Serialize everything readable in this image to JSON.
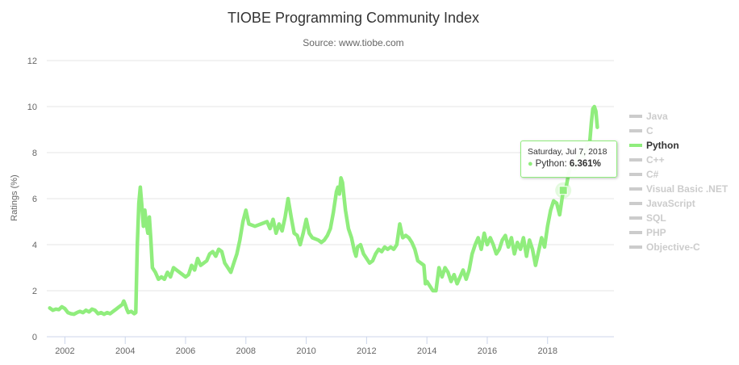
{
  "chart_data": {
    "type": "line",
    "title": "TIOBE Programming Community Index",
    "subtitle": "Source: www.tiobe.com",
    "ylabel": "Ratings (%)",
    "xlabel": "",
    "ylim": [
      0,
      12
    ],
    "xlim": [
      2001.4,
      2020.2
    ],
    "yticks": [
      0,
      2,
      4,
      6,
      8,
      10,
      12
    ],
    "xticks": [
      2002,
      2004,
      2006,
      2008,
      2010,
      2012,
      2014,
      2016,
      2018
    ],
    "grid": true,
    "legend_position": "right",
    "colors": {
      "active_series": "#90ed7d",
      "inactive_legend": "#cccccc",
      "grid": "#e6e6e6"
    },
    "legend": [
      "Java",
      "C",
      "Python",
      "C++",
      "C#",
      "Visual Basic .NET",
      "JavaScript",
      "SQL",
      "PHP",
      "Objective-C"
    ],
    "active_series": "Python",
    "series": [
      {
        "name": "Python",
        "color": "#90ed7d",
        "points": [
          [
            2001.5,
            1.25
          ],
          [
            2001.6,
            1.15
          ],
          [
            2001.7,
            1.2
          ],
          [
            2001.8,
            1.18
          ],
          [
            2001.9,
            1.3
          ],
          [
            2002.0,
            1.22
          ],
          [
            2002.1,
            1.05
          ],
          [
            2002.2,
            1.0
          ],
          [
            2002.3,
            0.98
          ],
          [
            2002.4,
            1.05
          ],
          [
            2002.5,
            1.1
          ],
          [
            2002.6,
            1.05
          ],
          [
            2002.7,
            1.15
          ],
          [
            2002.8,
            1.08
          ],
          [
            2002.9,
            1.2
          ],
          [
            2003.0,
            1.15
          ],
          [
            2003.1,
            1.0
          ],
          [
            2003.2,
            1.05
          ],
          [
            2003.3,
            0.98
          ],
          [
            2003.4,
            1.05
          ],
          [
            2003.5,
            1.0
          ],
          [
            2003.6,
            1.1
          ],
          [
            2003.7,
            1.2
          ],
          [
            2003.8,
            1.3
          ],
          [
            2003.9,
            1.4
          ],
          [
            2003.95,
            1.55
          ],
          [
            2004.0,
            1.4
          ],
          [
            2004.05,
            1.2
          ],
          [
            2004.1,
            1.05
          ],
          [
            2004.2,
            1.1
          ],
          [
            2004.3,
            1.0
          ],
          [
            2004.35,
            1.05
          ],
          [
            2004.4,
            4.0
          ],
          [
            2004.45,
            5.8
          ],
          [
            2004.5,
            6.5
          ],
          [
            2004.55,
            5.7
          ],
          [
            2004.6,
            4.8
          ],
          [
            2004.65,
            5.5
          ],
          [
            2004.7,
            4.9
          ],
          [
            2004.75,
            4.5
          ],
          [
            2004.8,
            5.2
          ],
          [
            2004.85,
            4.2
          ],
          [
            2004.9,
            3.0
          ],
          [
            2005.0,
            2.8
          ],
          [
            2005.1,
            2.5
          ],
          [
            2005.2,
            2.6
          ],
          [
            2005.3,
            2.5
          ],
          [
            2005.4,
            2.8
          ],
          [
            2005.5,
            2.6
          ],
          [
            2005.6,
            3.0
          ],
          [
            2005.7,
            2.9
          ],
          [
            2005.8,
            2.8
          ],
          [
            2005.9,
            2.7
          ],
          [
            2006.0,
            2.6
          ],
          [
            2006.1,
            2.7
          ],
          [
            2006.2,
            3.1
          ],
          [
            2006.3,
            2.9
          ],
          [
            2006.4,
            3.4
          ],
          [
            2006.5,
            3.1
          ],
          [
            2006.6,
            3.2
          ],
          [
            2006.7,
            3.3
          ],
          [
            2006.8,
            3.6
          ],
          [
            2006.9,
            3.7
          ],
          [
            2007.0,
            3.5
          ],
          [
            2007.1,
            3.8
          ],
          [
            2007.2,
            3.7
          ],
          [
            2007.3,
            3.2
          ],
          [
            2007.4,
            3.0
          ],
          [
            2007.5,
            2.8
          ],
          [
            2007.6,
            3.2
          ],
          [
            2007.7,
            3.6
          ],
          [
            2007.8,
            4.2
          ],
          [
            2007.9,
            5.0
          ],
          [
            2008.0,
            5.5
          ],
          [
            2008.1,
            4.9
          ],
          [
            2008.3,
            4.8
          ],
          [
            2008.5,
            4.9
          ],
          [
            2008.7,
            5.0
          ],
          [
            2008.8,
            4.7
          ],
          [
            2008.9,
            5.1
          ],
          [
            2009.0,
            4.5
          ],
          [
            2009.1,
            4.9
          ],
          [
            2009.2,
            4.6
          ],
          [
            2009.3,
            5.2
          ],
          [
            2009.4,
            6.0
          ],
          [
            2009.5,
            5.2
          ],
          [
            2009.6,
            4.5
          ],
          [
            2009.7,
            4.4
          ],
          [
            2009.8,
            4.0
          ],
          [
            2009.9,
            4.5
          ],
          [
            2010.0,
            5.1
          ],
          [
            2010.1,
            4.5
          ],
          [
            2010.2,
            4.3
          ],
          [
            2010.4,
            4.2
          ],
          [
            2010.5,
            4.1
          ],
          [
            2010.6,
            4.2
          ],
          [
            2010.7,
            4.4
          ],
          [
            2010.8,
            4.7
          ],
          [
            2010.9,
            5.4
          ],
          [
            2011.0,
            6.3
          ],
          [
            2011.05,
            6.5
          ],
          [
            2011.1,
            6.2
          ],
          [
            2011.15,
            6.9
          ],
          [
            2011.2,
            6.7
          ],
          [
            2011.3,
            5.5
          ],
          [
            2011.4,
            4.7
          ],
          [
            2011.5,
            4.3
          ],
          [
            2011.6,
            3.7
          ],
          [
            2011.65,
            3.5
          ],
          [
            2011.7,
            3.9
          ],
          [
            2011.8,
            4.0
          ],
          [
            2011.9,
            3.6
          ],
          [
            2012.0,
            3.4
          ],
          [
            2012.1,
            3.2
          ],
          [
            2012.2,
            3.3
          ],
          [
            2012.3,
            3.6
          ],
          [
            2012.4,
            3.8
          ],
          [
            2012.5,
            3.7
          ],
          [
            2012.6,
            3.9
          ],
          [
            2012.7,
            3.8
          ],
          [
            2012.8,
            3.9
          ],
          [
            2012.9,
            3.8
          ],
          [
            2013.0,
            4.0
          ],
          [
            2013.1,
            4.9
          ],
          [
            2013.2,
            4.3
          ],
          [
            2013.3,
            4.4
          ],
          [
            2013.4,
            4.3
          ],
          [
            2013.5,
            4.1
          ],
          [
            2013.6,
            3.8
          ],
          [
            2013.7,
            3.3
          ],
          [
            2013.8,
            3.2
          ],
          [
            2013.9,
            3.1
          ],
          [
            2013.95,
            2.3
          ],
          [
            2014.0,
            2.4
          ],
          [
            2014.1,
            2.2
          ],
          [
            2014.2,
            2.0
          ],
          [
            2014.3,
            2.0
          ],
          [
            2014.4,
            3.0
          ],
          [
            2014.5,
            2.6
          ],
          [
            2014.6,
            3.0
          ],
          [
            2014.7,
            2.8
          ],
          [
            2014.8,
            2.4
          ],
          [
            2014.9,
            2.7
          ],
          [
            2015.0,
            2.3
          ],
          [
            2015.1,
            2.6
          ],
          [
            2015.2,
            2.9
          ],
          [
            2015.3,
            2.5
          ],
          [
            2015.4,
            2.9
          ],
          [
            2015.5,
            3.6
          ],
          [
            2015.6,
            4.0
          ],
          [
            2015.7,
            4.3
          ],
          [
            2015.8,
            3.8
          ],
          [
            2015.9,
            4.5
          ],
          [
            2016.0,
            4.0
          ],
          [
            2016.1,
            4.3
          ],
          [
            2016.2,
            4.0
          ],
          [
            2016.3,
            3.6
          ],
          [
            2016.4,
            3.8
          ],
          [
            2016.5,
            4.2
          ],
          [
            2016.6,
            4.4
          ],
          [
            2016.7,
            3.9
          ],
          [
            2016.8,
            4.3
          ],
          [
            2016.9,
            3.6
          ],
          [
            2017.0,
            4.1
          ],
          [
            2017.1,
            3.8
          ],
          [
            2017.2,
            4.3
          ],
          [
            2017.3,
            3.5
          ],
          [
            2017.4,
            4.2
          ],
          [
            2017.5,
            3.8
          ],
          [
            2017.6,
            3.1
          ],
          [
            2017.7,
            3.7
          ],
          [
            2017.8,
            4.3
          ],
          [
            2017.9,
            3.9
          ],
          [
            2018.0,
            4.8
          ],
          [
            2018.1,
            5.5
          ],
          [
            2018.2,
            5.9
          ],
          [
            2018.3,
            5.8
          ],
          [
            2018.4,
            5.3
          ],
          [
            2018.52,
            6.36
          ],
          [
            2018.6,
            6.4
          ],
          [
            2018.7,
            7.1
          ],
          [
            2018.8,
            7.5
          ],
          [
            2018.9,
            7.3
          ],
          [
            2019.0,
            7.8
          ],
          [
            2019.1,
            8.1
          ],
          [
            2019.2,
            7.8
          ],
          [
            2019.3,
            8.3
          ],
          [
            2019.4,
            8.5
          ],
          [
            2019.45,
            9.3
          ],
          [
            2019.5,
            9.9
          ],
          [
            2019.55,
            10.0
          ],
          [
            2019.6,
            9.8
          ],
          [
            2019.65,
            9.1
          ]
        ]
      }
    ],
    "tooltip": {
      "date": "Saturday, Jul 7, 2018",
      "series": "Python",
      "value": "6.361%",
      "x": 2018.52,
      "y": 6.361
    }
  }
}
